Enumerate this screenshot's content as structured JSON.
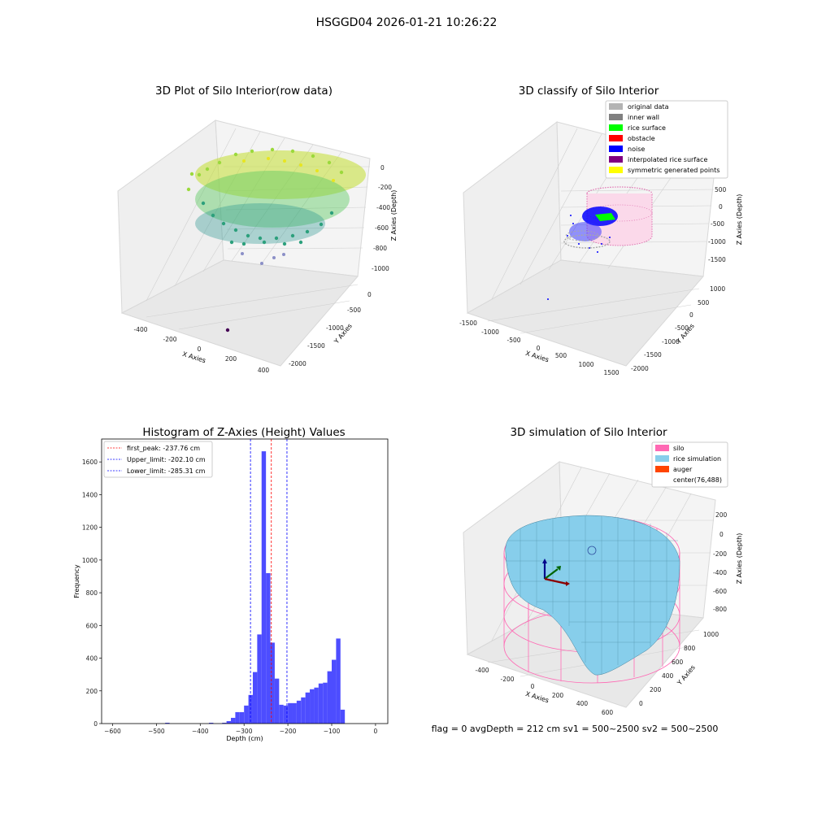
{
  "figure": {
    "suptitle": "HSGGD04 2026-01-21 10:26:22",
    "footer": "flag = 0     avgDepth = 212 cm  sv1 = 500~2500  sv2 = 500~2500"
  },
  "chart_data": [
    {
      "type": "scatter3d",
      "title": "3D Plot of Silo Interior(row data)",
      "xlabel": "X Axies",
      "ylabel": "Y Axies",
      "zlabel": "Z Axies (Depth)",
      "xticks": [
        "-400",
        "-200",
        "0",
        "200",
        "400"
      ],
      "yticks": [
        "0",
        "-500",
        "-1000",
        "-1500",
        "-2000"
      ],
      "zticks": [
        "0",
        "-200",
        "-400",
        "-600",
        "-800",
        "-1000"
      ],
      "xlim": [
        -500,
        500
      ],
      "ylim": [
        -2100,
        100
      ],
      "zlim": [
        -1100,
        50
      ],
      "colormap": [
        "#440154",
        "#3b528b",
        "#21918c",
        "#5ec962",
        "#fde725"
      ],
      "series": [
        {
          "x": [
            -300,
            -200,
            -100,
            0,
            100,
            200,
            300
          ],
          "y": [
            -400,
            -300,
            -250,
            -200,
            -250,
            -300,
            -400
          ],
          "z": [
            -20,
            -30,
            -40,
            -50,
            -40,
            -30,
            -20
          ]
        },
        {
          "x": [
            -250,
            -100,
            50,
            200
          ],
          "y": [
            -700,
            -650,
            -600,
            -650
          ],
          "z": [
            -450,
            -500,
            -550,
            -500
          ]
        },
        {
          "x": [
            -150,
            0,
            150
          ],
          "y": [
            -900,
            -950,
            -900
          ],
          "z": [
            -950,
            -1000,
            -950
          ]
        },
        {
          "x": [
            100
          ],
          "y": [
            -1800
          ],
          "z": [
            -1050
          ]
        }
      ]
    },
    {
      "type": "scatter3d",
      "title": "3D classify of Silo Interior",
      "xlabel": "X Axies",
      "ylabel": "Y Axies",
      "zlabel": "Z Axies (Depth)",
      "xticks": [
        "-1500",
        "-1000",
        "-500",
        "0",
        "500",
        "1000",
        "1500"
      ],
      "yticks": [
        "1000",
        "500",
        "0",
        "-500",
        "-1000",
        "-1500",
        "-2000"
      ],
      "zticks": [
        "500",
        "0",
        "-500",
        "-1000",
        "-1500"
      ],
      "xlim": [
        -1500,
        1500
      ],
      "ylim": [
        -2000,
        1000
      ],
      "zlim": [
        -1800,
        700
      ],
      "legend": [
        {
          "label": "original data",
          "color": "#b3b3b3"
        },
        {
          "label": "inner wall",
          "color": "#808080"
        },
        {
          "label": "rice surface",
          "color": "#00ff00"
        },
        {
          "label": "obstacle",
          "color": "#ff0000"
        },
        {
          "label": "noise",
          "color": "#0000ff"
        },
        {
          "label": "interpolated rice surface",
          "color": "#800080"
        },
        {
          "label": "symmetric generated points",
          "color": "#ffff00"
        }
      ],
      "legend_loc": "upper right"
    },
    {
      "type": "bar",
      "title": "Histogram of Z-Axies (Height) Values",
      "xlabel": "Depth (cm)",
      "ylabel": "Frequency",
      "xticks": [
        -600,
        -500,
        -400,
        -300,
        -200,
        -100,
        0
      ],
      "yticks": [
        0,
        200,
        400,
        600,
        800,
        1000,
        1200,
        1400,
        1600
      ],
      "xlim": [
        -625,
        28
      ],
      "ylim": [
        0,
        1740
      ],
      "bar_color": "#4d4dff",
      "bin_width": 10,
      "bins": [
        {
          "x": -475,
          "v": 5
        },
        {
          "x": -375,
          "v": 5
        },
        {
          "x": -345,
          "v": 5
        },
        {
          "x": -335,
          "v": 15
        },
        {
          "x": -325,
          "v": 35
        },
        {
          "x": -315,
          "v": 70
        },
        {
          "x": -305,
          "v": 70
        },
        {
          "x": -295,
          "v": 110
        },
        {
          "x": -285,
          "v": 175
        },
        {
          "x": -275,
          "v": 315
        },
        {
          "x": -265,
          "v": 545
        },
        {
          "x": -255,
          "v": 1665
        },
        {
          "x": -245,
          "v": 920
        },
        {
          "x": -235,
          "v": 495
        },
        {
          "x": -225,
          "v": 275
        },
        {
          "x": -215,
          "v": 115
        },
        {
          "x": -205,
          "v": 110
        },
        {
          "x": -195,
          "v": 125
        },
        {
          "x": -185,
          "v": 125
        },
        {
          "x": -175,
          "v": 140
        },
        {
          "x": -165,
          "v": 160
        },
        {
          "x": -155,
          "v": 190
        },
        {
          "x": -145,
          "v": 210
        },
        {
          "x": -135,
          "v": 220
        },
        {
          "x": -125,
          "v": 245
        },
        {
          "x": -115,
          "v": 250
        },
        {
          "x": -105,
          "v": 320
        },
        {
          "x": -95,
          "v": 390
        },
        {
          "x": -85,
          "v": 520
        },
        {
          "x": -75,
          "v": 85
        }
      ],
      "lines": [
        {
          "label": "first_peak: -237.76 cm",
          "x": -237.76,
          "color": "#ff0000"
        },
        {
          "label": "Upper_limit: -202.10 cm",
          "x": -202.1,
          "color": "#0000ff"
        },
        {
          "label": "Lower_limit: -285.31 cm",
          "x": -285.31,
          "color": "#0000ff"
        }
      ]
    },
    {
      "type": "surface3d",
      "title": "3D simulation of Silo Interior",
      "xlabel": "X Axies",
      "ylabel": "Y Axies",
      "zlabel": "Z Axies (Depth)",
      "xticks": [
        "-400",
        "-200",
        "0",
        "200",
        "400",
        "600"
      ],
      "yticks": [
        "0",
        "200",
        "400",
        "600",
        "800",
        "1000"
      ],
      "zticks": [
        "200",
        "0",
        "-200",
        "-400",
        "-600",
        "-800"
      ],
      "xlim": [
        -500,
        700
      ],
      "ylim": [
        -100,
        1100
      ],
      "zlim": [
        -900,
        300
      ],
      "legend": [
        {
          "label": "silo",
          "color": "#ff69b4"
        },
        {
          "label": "rice simulation",
          "color": "#87ceeb"
        },
        {
          "label": "auger",
          "color": "#ff4500"
        },
        {
          "label": "center(76,488)",
          "color": ""
        }
      ],
      "legend_loc": "upper right"
    }
  ]
}
